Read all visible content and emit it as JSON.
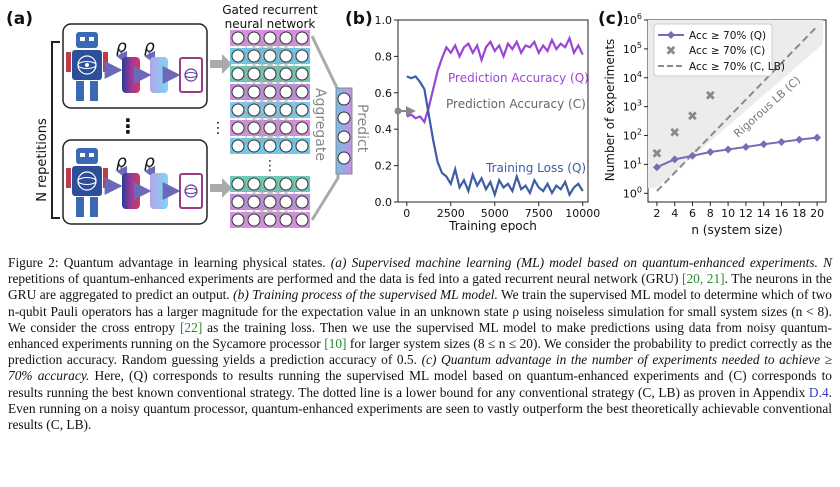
{
  "panel_a": {
    "label": "(a)",
    "gru_title_line1": "Gated recurrent",
    "gru_title_line2": "neural network",
    "n_repetitions": "N repetitions",
    "aggregate": "Aggregate",
    "predict": "Predict",
    "rho": "ρ",
    "vdots": "⋮",
    "hdots": "⋯"
  },
  "panel_b": {
    "label": "(b)",
    "xlabel": "Training epoch",
    "series_labels": {
      "acc_q": "Prediction Accuracy (Q)",
      "acc_c": "Prediction Accuracy (C)",
      "loss_q": "Training Loss (Q)"
    },
    "colors": {
      "acc_q": "#9b45d6",
      "acc_c": "#888888",
      "loss_q": "#3b5ea6"
    }
  },
  "panel_c": {
    "label": "(c)",
    "xlabel": "n (system size)",
    "ylabel": "Number of experiments",
    "lb_label": "Rigorous LB (C)",
    "legend": [
      "Acc ≥ 70% (Q)",
      "Acc ≥ 70% (C)",
      "Acc ≥ 70% (C, LB)"
    ],
    "colors": {
      "q": "#7b6bb5",
      "c": "#8a8a8a",
      "lb": "#8a8a8a"
    }
  },
  "chart_data": [
    {
      "type": "line",
      "panel": "b",
      "xlabel": "Training epoch",
      "ylabel": "",
      "xlim": [
        -500,
        10300
      ],
      "ylim": [
        0,
        1
      ],
      "xticks": [
        0,
        2500,
        5000,
        7500,
        10000
      ],
      "yticks": [
        0.0,
        0.2,
        0.4,
        0.6,
        0.8,
        1.0
      ],
      "series": [
        {
          "name": "Prediction Accuracy (Q)",
          "x": [
            0,
            250,
            500,
            750,
            1000,
            1250,
            1500,
            1750,
            2000,
            2250,
            2500,
            2750,
            3000,
            3250,
            3500,
            3750,
            4000,
            4250,
            4500,
            4750,
            5000,
            5250,
            5500,
            5750,
            6000,
            6250,
            6500,
            6750,
            7000,
            7250,
            7500,
            7750,
            8000,
            8250,
            8500,
            8750,
            9000,
            9250,
            9500,
            9750,
            10000
          ],
          "y": [
            0.47,
            0.48,
            0.46,
            0.47,
            0.44,
            0.52,
            0.62,
            0.72,
            0.79,
            0.85,
            0.82,
            0.86,
            0.8,
            0.85,
            0.87,
            0.82,
            0.86,
            0.78,
            0.85,
            0.88,
            0.83,
            0.86,
            0.8,
            0.87,
            0.84,
            0.88,
            0.82,
            0.86,
            0.85,
            0.88,
            0.82,
            0.86,
            0.83,
            0.89,
            0.84,
            0.87,
            0.85,
            0.9,
            0.82,
            0.86,
            0.81
          ]
        },
        {
          "name": "Prediction Accuracy (C)",
          "x": [
            -500,
            400
          ],
          "y": [
            0.5,
            0.5
          ]
        },
        {
          "name": "Training Loss (Q)",
          "x": [
            0,
            250,
            500,
            750,
            1000,
            1250,
            1500,
            1750,
            2000,
            2250,
            2500,
            2750,
            3000,
            3250,
            3500,
            3750,
            4000,
            4250,
            4500,
            4750,
            5000,
            5250,
            5500,
            5750,
            6000,
            6250,
            6500,
            6750,
            7000,
            7250,
            7500,
            7750,
            8000,
            8250,
            8500,
            8750,
            9000,
            9250,
            9500,
            9750,
            10000
          ],
          "y": [
            0.69,
            0.68,
            0.69,
            0.66,
            0.62,
            0.48,
            0.34,
            0.22,
            0.16,
            0.14,
            0.1,
            0.18,
            0.08,
            0.12,
            0.06,
            0.15,
            0.09,
            0.13,
            0.07,
            0.11,
            0.04,
            0.12,
            0.08,
            0.1,
            0.06,
            0.14,
            0.07,
            0.09,
            0.05,
            0.12,
            0.08,
            0.06,
            0.1,
            0.05,
            0.09,
            0.07,
            0.11,
            0.04,
            0.08,
            0.1,
            0.06
          ]
        }
      ]
    },
    {
      "type": "scatter",
      "panel": "c",
      "xlabel": "n (system size)",
      "ylabel": "Number of experiments",
      "xlim": [
        1,
        21
      ],
      "ylim": [
        0.5,
        1000000
      ],
      "yscale": "log",
      "xticks": [
        2,
        4,
        6,
        8,
        10,
        12,
        14,
        16,
        18,
        20
      ],
      "yticks": [
        1,
        10,
        100,
        1000,
        10000,
        100000,
        1000000
      ],
      "legend_position": "top-left",
      "series": [
        {
          "name": "Acc ≥ 70% (Q)",
          "x": [
            2,
            4,
            6,
            8,
            10,
            12,
            14,
            16,
            18,
            20
          ],
          "y": [
            8,
            15,
            20,
            27,
            33,
            40,
            50,
            60,
            72,
            85
          ]
        },
        {
          "name": "Acc ≥ 70% (C)",
          "x": [
            2,
            4,
            6,
            8
          ],
          "y": [
            25,
            130,
            500,
            2500
          ]
        },
        {
          "name": "Acc ≥ 70% (C, LB)",
          "x": [
            2,
            20
          ],
          "y": [
            1.2,
            600000
          ]
        }
      ]
    }
  ],
  "caption": {
    "p1": "Figure 2:   Quantum advantage in learning physical states. ",
    "p2": "(a) Supervised machine learning (ML) model based on quantum-enhanced experiments. N",
    "p3": " repetitions of quantum-enhanced experiments are performed and the data is fed into a gated recurrent neural network (GRU) ",
    "r1": "[20, 21]",
    "p4": ". The neurons in the GRU are aggregated to predict an output. ",
    "p5": "(b) Training process of the supervised ML model.",
    "p6": " We train the supervised ML model to determine which of two n-qubit Pauli operators has a larger magnitude for the expectation value in an unknown state ρ using noiseless simulation for small system sizes (n < 8). We consider the cross entropy ",
    "r2": "[22]",
    "p7": " as the training loss. Then we use the supervised ML model to make predictions using data from noisy quantum-enhanced experiments running on the Sycamore processor ",
    "r3": "[10]",
    "p8": " for larger system sizes (8 ≤ n ≤ 20). We consider the probability to predict correctly as the prediction accuracy. Random guessing yields a prediction accuracy of 0.5. ",
    "p9": "(c) Quantum advantage in the number of experiments needed to achieve ≥ 70% accuracy.",
    "p10": " Here, (Q) corresponds to results running the supervised ML model based on quantum-enhanced experiments and (C) corresponds to results running the best known conventional strategy. The dotted line is a lower bound for any conventional strategy (C, LB) as proven in Appendix ",
    "app": "D.4",
    "p11": ". Even running on a noisy quantum processor, quantum-enhanced experiments are seen to vastly outperform the best theoretically achievable conventional results (C, LB)."
  }
}
